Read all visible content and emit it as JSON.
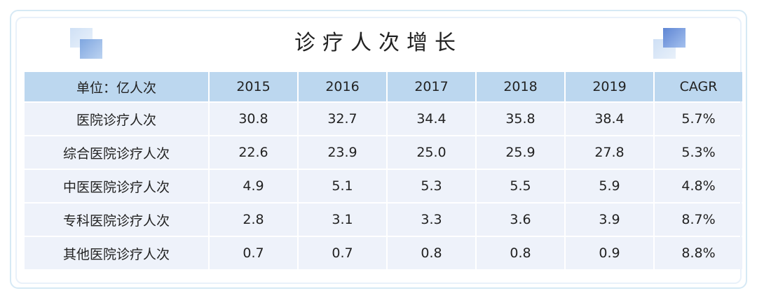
{
  "title": "诊疗人次增长",
  "table": {
    "headers": [
      "单位：亿人次",
      "2015",
      "2016",
      "2017",
      "2018",
      "2019",
      "CAGR"
    ],
    "rows": [
      [
        "医院诊疗人次",
        "30.8",
        "32.7",
        "34.4",
        "35.8",
        "38.4",
        "5.7%"
      ],
      [
        "综合医院诊疗人次",
        "22.6",
        "23.9",
        "25.0",
        "25.9",
        "27.8",
        "5.3%"
      ],
      [
        "中医医院诊疗人次",
        "4.9",
        "5.1",
        "5.3",
        "5.5",
        "5.9",
        "4.8%"
      ],
      [
        "专科医院诊疗人次",
        "2.8",
        "3.1",
        "3.3",
        "3.6",
        "3.9",
        "8.7%"
      ],
      [
        "其他医院诊疗人次",
        "0.7",
        "0.7",
        "0.8",
        "0.8",
        "0.9",
        "8.8%"
      ]
    ]
  },
  "colors": {
    "header_bg": "#bcd7ef",
    "row_bg": "#eef2fa",
    "accent": "#5f86d4"
  },
  "icons": [
    "decorative-squares-left-icon",
    "decorative-squares-right-icon"
  ]
}
